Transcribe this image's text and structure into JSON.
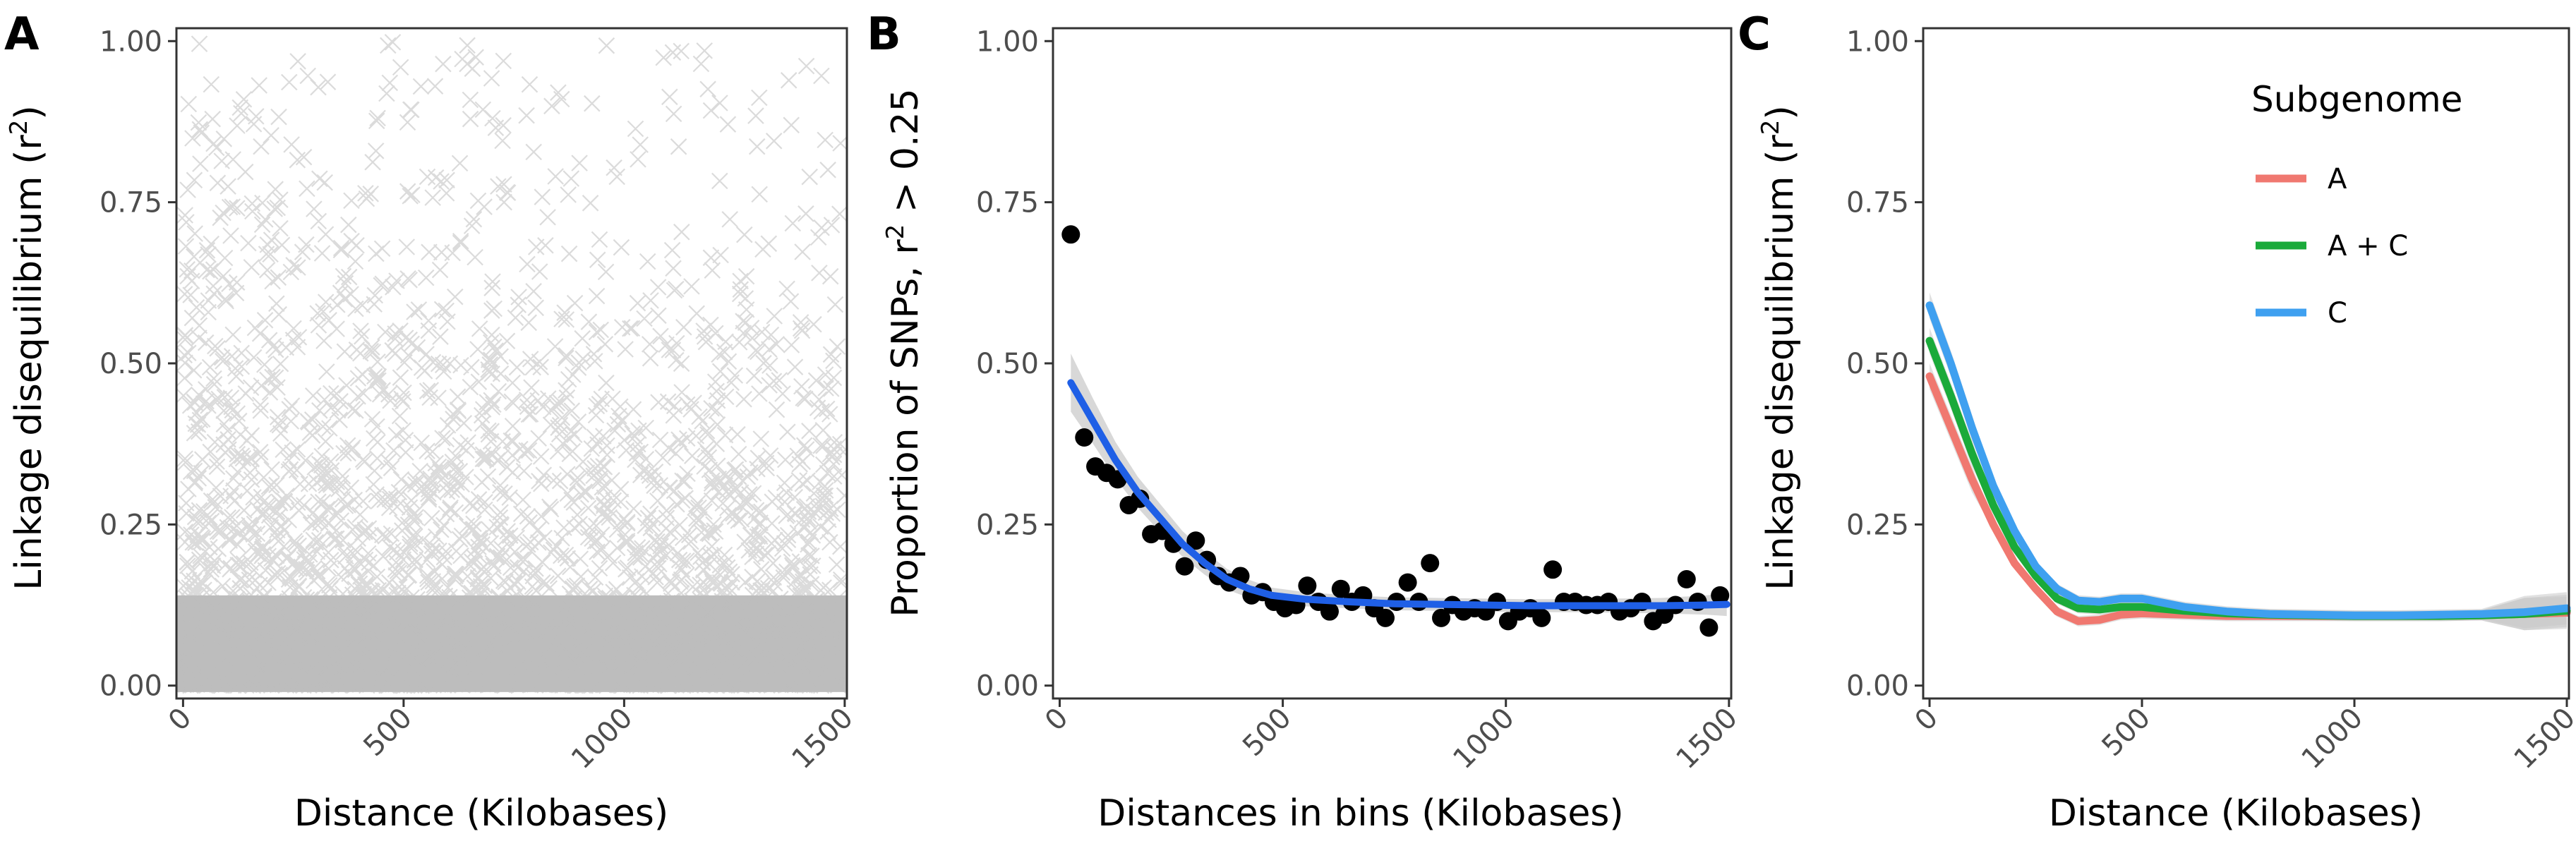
{
  "chart_data": [
    {
      "panel": "A",
      "type": "scatter",
      "xlabel": "Distance (Kilobases)",
      "ylabel": "Linkage disequilibrium (r²)",
      "xlim": [
        -15,
        1505
      ],
      "ylim": [
        -0.02,
        1.02
      ],
      "xticks": [
        0,
        500,
        1000,
        1500
      ],
      "xtick_labels": [
        "0",
        "500",
        "1000",
        "1500"
      ],
      "yticks": [
        0,
        0.25,
        0.5,
        0.75,
        1.0
      ],
      "ytick_labels": [
        "0.00",
        "0.25",
        "0.50",
        "0.75",
        "1.00"
      ],
      "marker": "x",
      "point_color": "#bdbdbd",
      "density_note": "Dense cloud of pairwise LD values covering the full range, densest below r² ≈ 0.25 and sparser toward r² = 1.00, especially at larger distances."
    },
    {
      "panel": "B",
      "type": "scatter",
      "xlabel": "Distances in bins (Kilobases)",
      "ylabel": "Proportion of SNPs, r² > 0.25",
      "xlim": [
        -15,
        1505
      ],
      "ylim": [
        -0.02,
        1.02
      ],
      "xticks": [
        0,
        500,
        1000,
        1500
      ],
      "xtick_labels": [
        "0",
        "500",
        "1000",
        "1500"
      ],
      "yticks": [
        0,
        0.25,
        0.5,
        0.75,
        1.0
      ],
      "ytick_labels": [
        "0.00",
        "0.25",
        "0.50",
        "0.75",
        "1.00"
      ],
      "point_color": "#000000",
      "fit_color": "#1f5fe6",
      "ribbon_color": "#c8c8c8",
      "points": [
        [
          25,
          0.7
        ],
        [
          55,
          0.385
        ],
        [
          80,
          0.34
        ],
        [
          105,
          0.33
        ],
        [
          130,
          0.32
        ],
        [
          155,
          0.28
        ],
        [
          180,
          0.29
        ],
        [
          205,
          0.235
        ],
        [
          230,
          0.24
        ],
        [
          255,
          0.22
        ],
        [
          280,
          0.185
        ],
        [
          305,
          0.225
        ],
        [
          330,
          0.195
        ],
        [
          355,
          0.17
        ],
        [
          380,
          0.16
        ],
        [
          405,
          0.17
        ],
        [
          430,
          0.14
        ],
        [
          455,
          0.145
        ],
        [
          480,
          0.13
        ],
        [
          505,
          0.12
        ],
        [
          530,
          0.125
        ],
        [
          555,
          0.155
        ],
        [
          580,
          0.13
        ],
        [
          605,
          0.115
        ],
        [
          630,
          0.15
        ],
        [
          655,
          0.13
        ],
        [
          680,
          0.14
        ],
        [
          705,
          0.12
        ],
        [
          730,
          0.105
        ],
        [
          755,
          0.13
        ],
        [
          780,
          0.16
        ],
        [
          805,
          0.13
        ],
        [
          830,
          0.19
        ],
        [
          855,
          0.105
        ],
        [
          880,
          0.125
        ],
        [
          905,
          0.115
        ],
        [
          930,
          0.12
        ],
        [
          955,
          0.115
        ],
        [
          980,
          0.13
        ],
        [
          1005,
          0.1
        ],
        [
          1030,
          0.115
        ],
        [
          1055,
          0.12
        ],
        [
          1080,
          0.105
        ],
        [
          1105,
          0.18
        ],
        [
          1130,
          0.13
        ],
        [
          1155,
          0.13
        ],
        [
          1180,
          0.125
        ],
        [
          1205,
          0.125
        ],
        [
          1230,
          0.13
        ],
        [
          1255,
          0.115
        ],
        [
          1280,
          0.12
        ],
        [
          1305,
          0.13
        ],
        [
          1330,
          0.1
        ],
        [
          1355,
          0.11
        ],
        [
          1380,
          0.125
        ],
        [
          1405,
          0.165
        ],
        [
          1430,
          0.13
        ],
        [
          1455,
          0.09
        ],
        [
          1480,
          0.14
        ]
      ],
      "fit": [
        [
          25,
          0.47
        ],
        [
          75,
          0.41
        ],
        [
          125,
          0.35
        ],
        [
          175,
          0.3
        ],
        [
          225,
          0.26
        ],
        [
          275,
          0.22
        ],
        [
          325,
          0.19
        ],
        [
          375,
          0.165
        ],
        [
          425,
          0.15
        ],
        [
          475,
          0.14
        ],
        [
          550,
          0.134
        ],
        [
          650,
          0.13
        ],
        [
          750,
          0.127
        ],
        [
          850,
          0.126
        ],
        [
          950,
          0.125
        ],
        [
          1050,
          0.124
        ],
        [
          1150,
          0.124
        ],
        [
          1250,
          0.124
        ],
        [
          1350,
          0.124
        ],
        [
          1450,
          0.125
        ],
        [
          1495,
          0.126
        ]
      ],
      "fit_se": [
        0.045,
        0.035,
        0.028,
        0.024,
        0.022,
        0.02,
        0.018,
        0.016,
        0.014,
        0.012,
        0.011,
        0.01,
        0.01,
        0.01,
        0.01,
        0.01,
        0.01,
        0.011,
        0.012,
        0.015,
        0.018
      ]
    },
    {
      "panel": "C",
      "type": "line",
      "xlabel": "Distance (Kilobases)",
      "ylabel": "Linkage disequilibrium (r²)",
      "xlim": [
        -15,
        1505
      ],
      "ylim": [
        -0.02,
        1.02
      ],
      "xticks": [
        0,
        500,
        1000,
        1500
      ],
      "xtick_labels": [
        "0",
        "500",
        "1000",
        "1500"
      ],
      "yticks": [
        0,
        0.25,
        0.5,
        0.75,
        1.0
      ],
      "ytick_labels": [
        "0.00",
        "0.25",
        "0.50",
        "0.75",
        "1.00"
      ],
      "legend_title": "Subgenome",
      "legend_position": "top-right",
      "ribbon_color": "#c8c8c8",
      "series": [
        {
          "name": "A",
          "color": "#f07870",
          "points": [
            [
              0,
              0.48
            ],
            [
              50,
              0.4
            ],
            [
              100,
              0.32
            ],
            [
              150,
              0.25
            ],
            [
              200,
              0.19
            ],
            [
              250,
              0.15
            ],
            [
              300,
              0.115
            ],
            [
              350,
              0.1
            ],
            [
              400,
              0.102
            ],
            [
              450,
              0.11
            ],
            [
              500,
              0.112
            ],
            [
              600,
              0.11
            ],
            [
              700,
              0.108
            ],
            [
              800,
              0.108
            ],
            [
              900,
              0.108
            ],
            [
              1000,
              0.108
            ],
            [
              1100,
              0.108
            ],
            [
              1200,
              0.108
            ],
            [
              1300,
              0.109
            ],
            [
              1400,
              0.111
            ],
            [
              1500,
              0.113
            ]
          ]
        },
        {
          "name": "A + C",
          "color": "#1aaa3a",
          "points": [
            [
              0,
              0.535
            ],
            [
              50,
              0.45
            ],
            [
              100,
              0.36
            ],
            [
              150,
              0.28
            ],
            [
              200,
              0.215
            ],
            [
              250,
              0.17
            ],
            [
              300,
              0.135
            ],
            [
              350,
              0.12
            ],
            [
              400,
              0.118
            ],
            [
              450,
              0.122
            ],
            [
              500,
              0.122
            ],
            [
              600,
              0.116
            ],
            [
              700,
              0.112
            ],
            [
              800,
              0.11
            ],
            [
              900,
              0.109
            ],
            [
              1000,
              0.108
            ],
            [
              1100,
              0.108
            ],
            [
              1200,
              0.108
            ],
            [
              1300,
              0.109
            ],
            [
              1400,
              0.111
            ],
            [
              1500,
              0.116
            ]
          ]
        },
        {
          "name": "C",
          "color": "#3fa0f0",
          "points": [
            [
              0,
              0.59
            ],
            [
              50,
              0.5
            ],
            [
              100,
              0.4
            ],
            [
              150,
              0.31
            ],
            [
              200,
              0.24
            ],
            [
              250,
              0.185
            ],
            [
              300,
              0.15
            ],
            [
              350,
              0.132
            ],
            [
              400,
              0.13
            ],
            [
              450,
              0.135
            ],
            [
              500,
              0.135
            ],
            [
              600,
              0.122
            ],
            [
              700,
              0.115
            ],
            [
              800,
              0.111
            ],
            [
              900,
              0.11
            ],
            [
              1000,
              0.109
            ],
            [
              1100,
              0.109
            ],
            [
              1200,
              0.11
            ],
            [
              1300,
              0.111
            ],
            [
              1400,
              0.114
            ],
            [
              1500,
              0.12
            ]
          ]
        }
      ]
    }
  ],
  "panels": {
    "A": {
      "letter": "A"
    },
    "B": {
      "letter": "B"
    },
    "C": {
      "letter": "C"
    }
  }
}
